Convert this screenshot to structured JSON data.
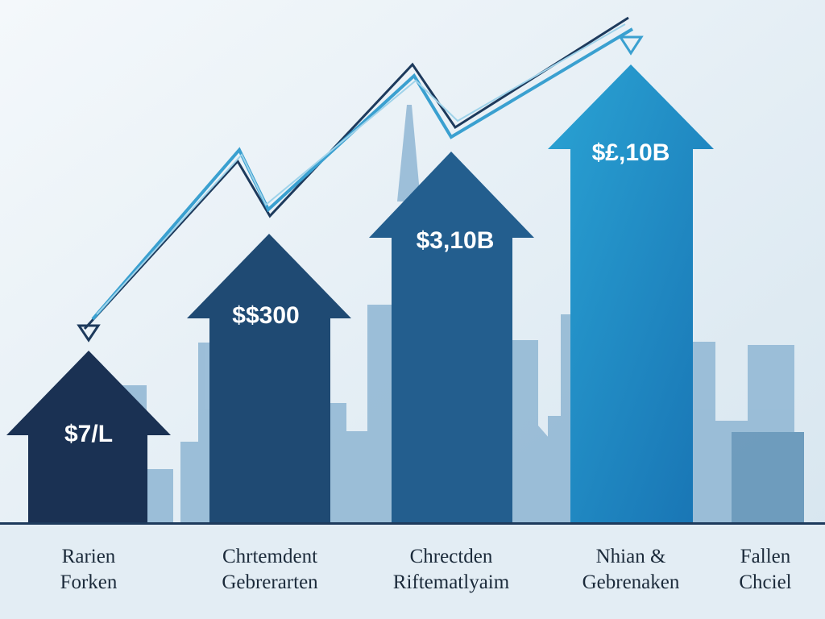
{
  "arrows": [
    {
      "value": "$7/L"
    },
    {
      "value": "$$300"
    },
    {
      "value": "$3,10B"
    },
    {
      "value": "$£,10B"
    }
  ],
  "labels": [
    [
      "Rarien",
      "Forken"
    ],
    [
      "Chrtemdent",
      "Gebrerarten"
    ],
    [
      "Chrectden",
      "Riftematlyaim"
    ],
    [
      "Nhian &",
      "Gebrenaken"
    ],
    [
      "Fallen",
      "Chciel"
    ]
  ]
}
